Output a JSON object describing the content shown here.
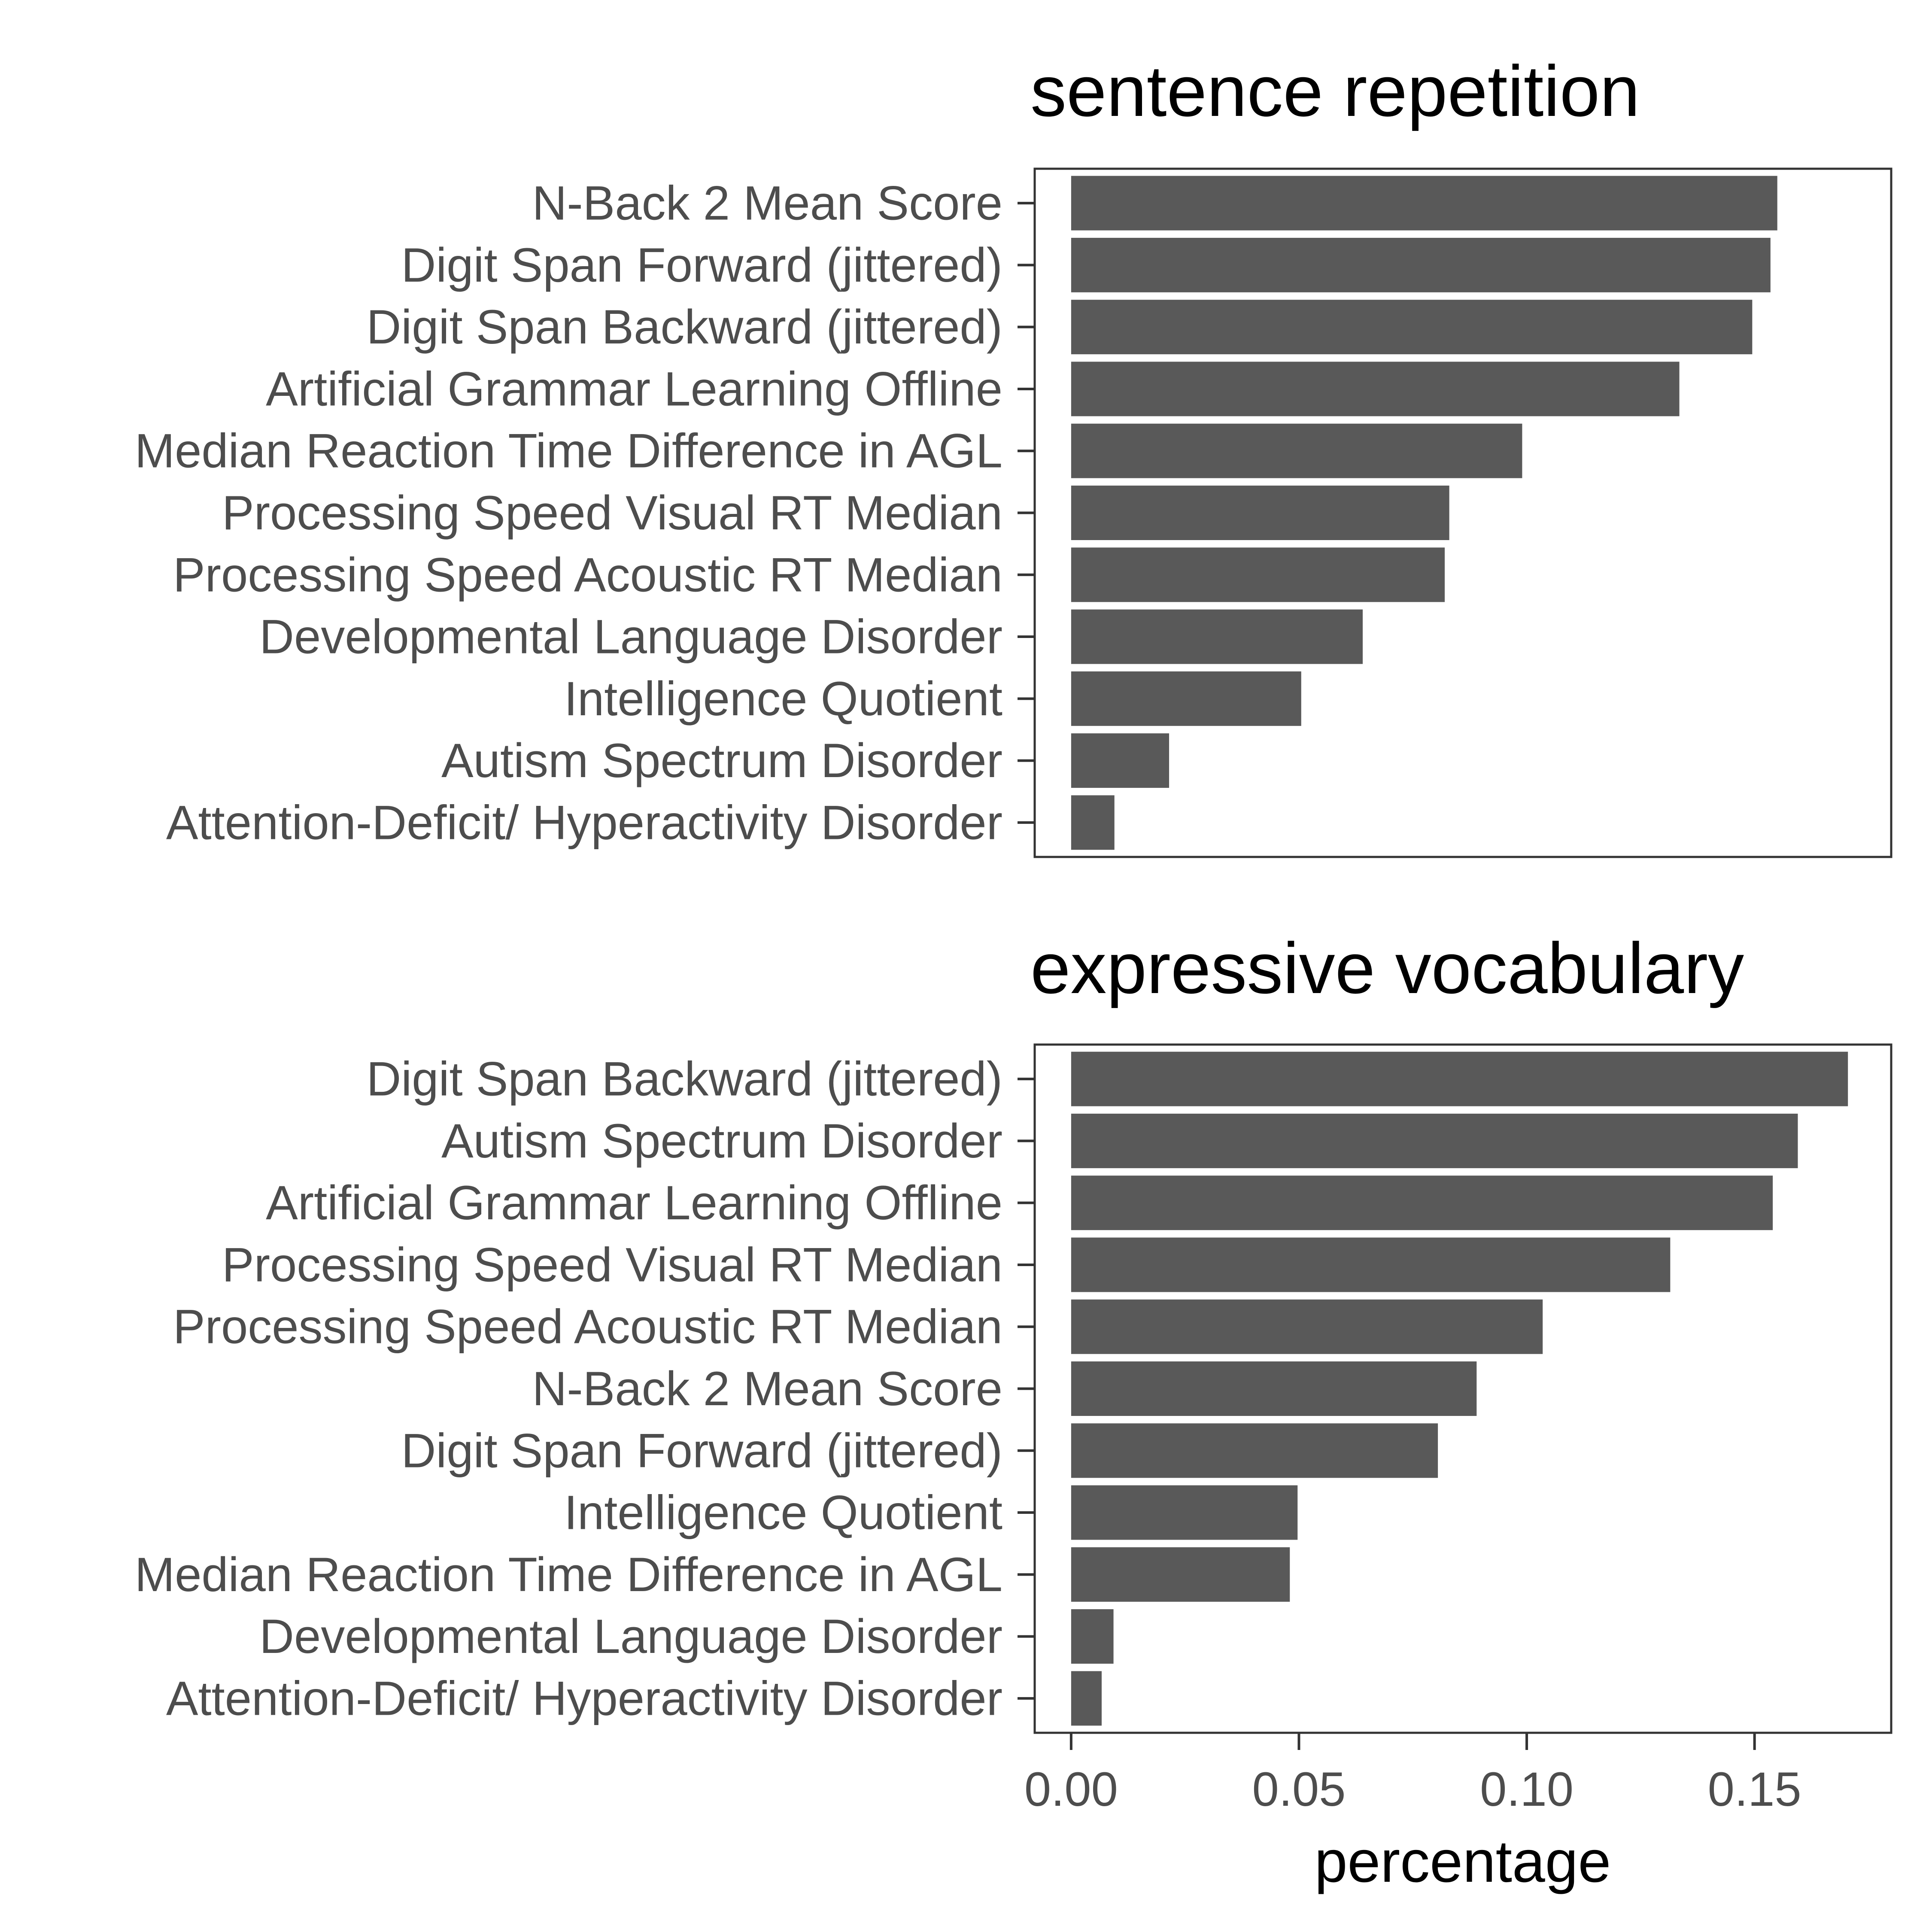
{
  "chart_data": [
    {
      "type": "bar",
      "orientation": "horizontal",
      "title": "sentence repetition",
      "categories": [
        "N-Back 2 Mean Score",
        "Digit Span Forward (jittered)",
        "Digit Span Backward (jittered)",
        "Artificial Grammar Learning Offline",
        "Median Reaction Time Difference in AGL",
        "Processing Speed Visual RT Median",
        "Processing Speed Acoustic RT Median",
        "Developmental Language Disorder",
        "Intelligence Quotient",
        "Autism Spectrum Disorder",
        "Attention-Deficit/ Hyperactivity Disorder"
      ],
      "values": [
        0.155,
        0.1535,
        0.1495,
        0.1335,
        0.099,
        0.083,
        0.082,
        0.064,
        0.0505,
        0.0215,
        0.0095
      ],
      "xlim": [
        -0.008,
        0.18
      ],
      "grid": false,
      "bar_color": "#595959"
    },
    {
      "type": "bar",
      "orientation": "horizontal",
      "title": "expressive vocabulary",
      "categories": [
        "Digit Span Backward (jittered)",
        "Autism Spectrum Disorder",
        "Artificial Grammar Learning Offline",
        "Processing Speed Visual RT Median",
        "Processing Speed Acoustic RT Median",
        "N-Back 2 Mean Score",
        "Digit Span Forward (jittered)",
        "Intelligence Quotient",
        "Median Reaction Time Difference in AGL",
        "Developmental Language Disorder",
        "Attention-Deficit/ Hyperactivity Disorder"
      ],
      "values": [
        0.1705,
        0.1595,
        0.154,
        0.1315,
        0.1035,
        0.089,
        0.0805,
        0.0497,
        0.048,
        0.0093,
        0.0067
      ],
      "xlim": [
        -0.008,
        0.18
      ],
      "xticks": [
        0.0,
        0.05,
        0.1,
        0.15
      ],
      "xtick_labels": [
        "0.00",
        "0.05",
        "0.10",
        "0.15"
      ],
      "xlabel": "percentage",
      "grid": false,
      "bar_color": "#595959"
    }
  ]
}
